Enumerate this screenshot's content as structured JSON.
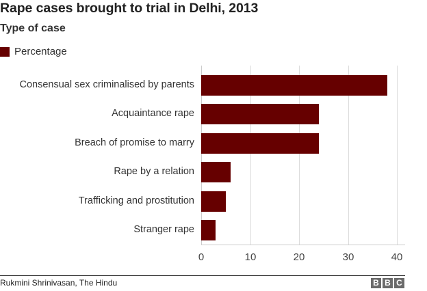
{
  "title": "Rape cases brought to trial in Delhi, 2013",
  "subtitle": "Type of case",
  "legend": {
    "label": "Percentage",
    "color": "#660000"
  },
  "source": "Rukmini Shrinivasan, The Hindu",
  "brand": [
    "B",
    "B",
    "C"
  ],
  "chart_data": {
    "type": "bar",
    "orientation": "horizontal",
    "title": "Rape cases brought to trial in Delhi, 2013",
    "subtitle": "Type of case",
    "xlabel": "",
    "ylabel": "",
    "categories": [
      "Consensual sex criminalised by parents",
      "Acquaintance rape",
      "Breach of promise to marry",
      "Rape by a relation",
      "Trafficking and prostitution",
      "Stranger rape"
    ],
    "series": [
      {
        "name": "Percentage",
        "color": "#660000",
        "values": [
          38,
          24,
          24,
          6,
          5,
          3
        ]
      }
    ],
    "xlim": [
      0,
      42
    ],
    "xticks": [
      0,
      10,
      20,
      30,
      40
    ],
    "grid": true,
    "legend_position": "top-left"
  }
}
